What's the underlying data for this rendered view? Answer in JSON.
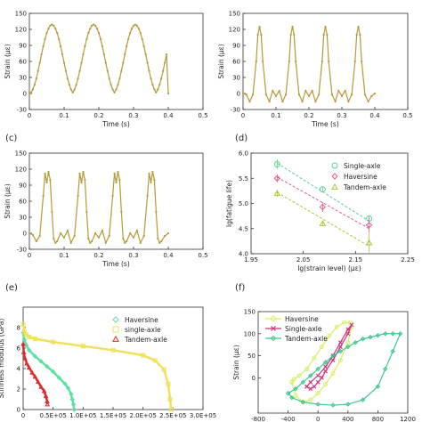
{
  "panel_labels": {
    "c": "(c)",
    "d": "(d)",
    "e": "(e)",
    "f": "(f)"
  },
  "chart_data": [
    {
      "id": "a",
      "type": "line",
      "xlabel": "Time (s)",
      "ylabel": "Strain (με)",
      "xlim": [
        0,
        0.5
      ],
      "ylim": [
        -30,
        150
      ],
      "xticks": [
        0,
        0.1,
        0.2,
        0.3,
        0.4,
        0.5
      ],
      "xtick_labels": [
        "0",
        "0.1",
        "0.2",
        "0.3",
        "0.4",
        "0.5"
      ],
      "yticks": [
        -30,
        0,
        30,
        60,
        90,
        120,
        150
      ],
      "ytick_labels": [
        "-30",
        "0",
        "30",
        "60",
        "90",
        "120",
        "150"
      ],
      "series": [
        {
          "color": "#b39a3a",
          "marker": "dot",
          "x": [
            0,
            0.005,
            0.01,
            0.015,
            0.02,
            0.025,
            0.03,
            0.035,
            0.04,
            0.045,
            0.05,
            0.055,
            0.06,
            0.065,
            0.07,
            0.075,
            0.08,
            0.085,
            0.09,
            0.095,
            0.1,
            0.105,
            0.11,
            0.115,
            0.12,
            0.125,
            0.13,
            0.135,
            0.14,
            0.145,
            0.15,
            0.155,
            0.16,
            0.165,
            0.17,
            0.175,
            0.18,
            0.185,
            0.19,
            0.195,
            0.2,
            0.205,
            0.21,
            0.215,
            0.22,
            0.225,
            0.23,
            0.235,
            0.24,
            0.245,
            0.25,
            0.255,
            0.26,
            0.265,
            0.27,
            0.275,
            0.28,
            0.285,
            0.29,
            0.295,
            0.3,
            0.305,
            0.31,
            0.315,
            0.32,
            0.325,
            0.33,
            0.335,
            0.34,
            0.345,
            0.35,
            0.355,
            0.36,
            0.365,
            0.37,
            0.375,
            0.38,
            0.385,
            0.39,
            0.395,
            0.4
          ],
          "y": [
            0,
            1.9,
            7.5,
            16.3,
            28,
            42,
            57.5,
            73.4,
            88.5,
            101.9,
            113.2,
            121.4,
            127,
            129,
            127,
            121.4,
            113.2,
            101.9,
            88.5,
            73.4,
            57.5,
            42,
            28,
            16.3,
            7.5,
            1.9,
            7.5,
            16.3,
            28,
            42,
            57.5,
            73.4,
            88.5,
            101.9,
            113.2,
            121.4,
            127,
            129,
            127,
            121.4,
            113.2,
            101.9,
            88.5,
            73.4,
            57.5,
            42,
            28,
            16.3,
            7.5,
            1.9,
            7.5,
            16.3,
            28,
            42,
            57.5,
            73.4,
            88.5,
            101.9,
            113.2,
            121.4,
            127,
            129,
            127,
            121.4,
            113.2,
            101.9,
            88.5,
            73.4,
            57.5,
            42,
            28,
            16.3,
            7.5,
            1.9,
            7.5,
            16.3,
            28,
            42,
            57.5,
            73.4,
            0
          ]
        }
      ]
    },
    {
      "id": "b",
      "type": "line",
      "xlabel": "Time (s)",
      "ylabel": "Strain (με)",
      "xlim": [
        0,
        0.5
      ],
      "ylim": [
        -30,
        150
      ],
      "xticks": [
        0,
        0.1,
        0.2,
        0.3,
        0.4,
        0.5
      ],
      "xtick_labels": [
        "0",
        "0.1",
        "0.2",
        "0.3",
        "0.4",
        "0.5"
      ],
      "yticks": [
        -30,
        0,
        30,
        60,
        90,
        120,
        150
      ],
      "ytick_labels": [
        "-30",
        "0",
        "30",
        "60",
        "90",
        "120",
        "150"
      ],
      "series": [
        {
          "color": "#b39a3a",
          "marker": "dot",
          "x": [
            0,
            0.01,
            0.02,
            0.03,
            0.04,
            0.045,
            0.05,
            0.055,
            0.06,
            0.07,
            0.08,
            0.09,
            0.1,
            0.11,
            0.12,
            0.13,
            0.14,
            0.145,
            0.15,
            0.155,
            0.16,
            0.17,
            0.18,
            0.19,
            0.2,
            0.21,
            0.22,
            0.23,
            0.24,
            0.245,
            0.25,
            0.255,
            0.26,
            0.27,
            0.28,
            0.29,
            0.3,
            0.31,
            0.32,
            0.33,
            0.34,
            0.345,
            0.35,
            0.355,
            0.36,
            0.37,
            0.38,
            0.39,
            0.4
          ],
          "y": [
            0,
            -2,
            -15,
            -2,
            60,
            110,
            125,
            110,
            60,
            -2,
            -15,
            5,
            -5,
            5,
            -15,
            -2,
            60,
            110,
            125,
            110,
            60,
            -2,
            -15,
            5,
            -5,
            5,
            -15,
            -2,
            60,
            110,
            125,
            110,
            60,
            -2,
            -15,
            5,
            -5,
            5,
            -15,
            -2,
            60,
            110,
            125,
            110,
            60,
            -2,
            -15,
            -5,
            0
          ]
        }
      ]
    },
    {
      "id": "c",
      "type": "line",
      "xlabel": "Time (s)",
      "ylabel": "Strain (με)",
      "xlim": [
        0,
        0.5
      ],
      "ylim": [
        -30,
        150
      ],
      "xticks": [
        0,
        0.1,
        0.2,
        0.3,
        0.4,
        0.5
      ],
      "xtick_labels": [
        "0",
        "0.1",
        "0.2",
        "0.3",
        "0.4",
        "0.5"
      ],
      "yticks": [
        -30,
        0,
        30,
        60,
        90,
        120,
        150
      ],
      "ytick_labels": [
        "-30",
        "0",
        "30",
        "60",
        "90",
        "120",
        "150"
      ],
      "series": [
        {
          "color": "#b39a3a",
          "marker": "dot",
          "x": [
            0,
            0.01,
            0.02,
            0.03,
            0.04,
            0.045,
            0.05,
            0.055,
            0.06,
            0.065,
            0.07,
            0.075,
            0.08,
            0.09,
            0.1,
            0.11,
            0.12,
            0.13,
            0.14,
            0.145,
            0.15,
            0.155,
            0.16,
            0.165,
            0.17,
            0.175,
            0.18,
            0.19,
            0.2,
            0.21,
            0.22,
            0.23,
            0.24,
            0.245,
            0.25,
            0.255,
            0.26,
            0.265,
            0.27,
            0.275,
            0.28,
            0.29,
            0.3,
            0.31,
            0.32,
            0.33,
            0.34,
            0.345,
            0.35,
            0.355,
            0.36,
            0.365,
            0.37,
            0.375,
            0.38,
            0.39,
            0.4
          ],
          "y": [
            0,
            -3,
            -15,
            -5,
            70,
            112,
            95,
            115,
            100,
            40,
            -10,
            -18,
            -15,
            0,
            -8,
            5,
            -18,
            -5,
            70,
            112,
            95,
            115,
            100,
            40,
            -10,
            -18,
            -15,
            0,
            -8,
            5,
            -18,
            -5,
            70,
            112,
            95,
            115,
            100,
            40,
            -10,
            -18,
            -15,
            0,
            -8,
            5,
            -18,
            -5,
            70,
            112,
            95,
            115,
            100,
            40,
            -10,
            -18,
            -15,
            -5,
            0
          ]
        }
      ]
    },
    {
      "id": "d",
      "type": "scatter",
      "xlabel": "lg(strain level) (με)",
      "ylabel": "lg(fatigue life)",
      "xlim": [
        1.95,
        2.25
      ],
      "ylim": [
        4.0,
        6.0
      ],
      "xticks": [
        1.95,
        2.05,
        2.15,
        2.25
      ],
      "xtick_labels": [
        "1.95",
        "2.05",
        "2.15",
        "2.25"
      ],
      "yticks": [
        4.0,
        4.5,
        5.0,
        5.5,
        6.0
      ],
      "ytick_labels": [
        "4.0",
        "4.5",
        "5.0",
        "5.5",
        "6.0"
      ],
      "legend_position": "top-right",
      "series": [
        {
          "name": "Single-axle",
          "marker": "circle",
          "color": "#5dd08f",
          "x": [
            2.0,
            2.087,
            2.176
          ],
          "y": [
            5.78,
            5.28,
            4.7
          ],
          "err": [
            0.1,
            0.05,
            0.05
          ],
          "fit_x": [
            2.0,
            2.176
          ],
          "fit_y": [
            5.8,
            4.65
          ]
        },
        {
          "name": "Haversine",
          "marker": "diamond",
          "color": "#e05c94",
          "x": [
            2.0,
            2.087,
            2.176
          ],
          "y": [
            5.5,
            4.93,
            4.57
          ],
          "err": [
            0.08,
            0.1,
            0.15
          ],
          "fit_x": [
            2.0,
            2.176
          ],
          "fit_y": [
            5.52,
            4.5
          ]
        },
        {
          "name": "Tandem-axle",
          "marker": "triangle",
          "color": "#a8c83c",
          "x": [
            2.0,
            2.087,
            2.176
          ],
          "y": [
            5.2,
            4.6,
            4.22
          ],
          "err": [
            0.07,
            0.05,
            0.2
          ],
          "fit_x": [
            2.0,
            2.176
          ],
          "fit_y": [
            5.22,
            4.15
          ]
        }
      ]
    },
    {
      "id": "e",
      "type": "line",
      "xlabel": "",
      "ylabel": "Stiffness modulus (GPa)",
      "xlim": [
        0,
        300000
      ],
      "ylim": [
        0,
        10
      ],
      "xticks": [
        0,
        50000,
        100000,
        150000,
        200000,
        250000,
        300000
      ],
      "xtick_labels": [
        "0",
        "0.5E+05",
        "1.0E+05",
        "1.5E+05",
        "2.0E+05",
        "2.5E+05",
        "3.0E+05"
      ],
      "yticks": [
        0,
        2,
        4,
        6,
        8
      ],
      "ytick_labels": [
        "0",
        "2",
        "4",
        "6",
        "8"
      ],
      "legend_position": "top-right",
      "series": [
        {
          "name": "Haversine",
          "marker": "diamond",
          "color": "#5ce0a4",
          "x": [
            0,
            2000,
            5000,
            10000,
            20000,
            30000,
            40000,
            50000,
            60000,
            70000,
            75000,
            80000,
            82000,
            84000,
            85000
          ],
          "y": [
            7.5,
            6.8,
            6.3,
            5.8,
            5.2,
            4.7,
            4.2,
            3.7,
            3.1,
            2.5,
            2.1,
            1.5,
            1.0,
            0.5,
            0
          ]
        },
        {
          "name": "single-axle",
          "marker": "square",
          "color": "#f0e15a",
          "x": [
            0,
            2000,
            5000,
            10000,
            20000,
            50000,
            100000,
            150000,
            200000,
            220000,
            235000,
            242000,
            245000,
            247000
          ],
          "y": [
            8.3,
            7.6,
            7.3,
            7.1,
            6.9,
            6.6,
            6.2,
            5.8,
            5.3,
            4.8,
            3.9,
            2.5,
            1.0,
            0
          ]
        },
        {
          "name": "Tandem-axle",
          "marker": "triangle",
          "color": "#e02a2a",
          "x": [
            0,
            1000,
            3000,
            6000,
            10000,
            15000,
            20000,
            25000,
            30000,
            35000,
            38000,
            40000,
            40500
          ],
          "y": [
            6.4,
            5.6,
            5.0,
            4.5,
            4.1,
            3.6,
            3.2,
            2.7,
            2.2,
            1.8,
            1.3,
            0.8,
            0.5
          ]
        }
      ]
    },
    {
      "id": "f",
      "type": "scatter",
      "xlabel": "",
      "ylabel": "Strain (με)",
      "xlim": [
        -800,
        1200
      ],
      "ylim": [
        -80,
        150
      ],
      "xticks": [
        -800,
        -400,
        0,
        400,
        800,
        1200
      ],
      "xtick_labels": [
        "-800",
        "-400",
        "0",
        "400",
        "800",
        "1200"
      ],
      "yticks": [
        0,
        50,
        100,
        150
      ],
      "ytick_labels": [
        "0",
        "50",
        "100",
        "150"
      ],
      "legend_position": "top-left",
      "series": [
        {
          "name": "Haversine",
          "marker": "circle",
          "color": "#d8ee66",
          "x": [
            -350,
            -300,
            -200,
            -100,
            0,
            100,
            200,
            300,
            400,
            450,
            430,
            350,
            250,
            150,
            50,
            -50,
            -150,
            -250,
            -320,
            -350
          ],
          "y": [
            -10,
            -40,
            -55,
            -50,
            -35,
            -15,
            10,
            40,
            80,
            115,
            125,
            125,
            115,
            95,
            70,
            45,
            20,
            5,
            -3,
            -10
          ]
        },
        {
          "name": "Single-axle",
          "marker": "cross",
          "color": "#d0327a",
          "x": [
            -150,
            -100,
            -50,
            0,
            50,
            100,
            200,
            300,
            400,
            450,
            400,
            300,
            200,
            100,
            0,
            -100,
            -150
          ],
          "y": [
            -20,
            -25,
            -20,
            -10,
            0,
            15,
            40,
            70,
            100,
            120,
            110,
            80,
            50,
            25,
            5,
            -10,
            -20
          ]
        },
        {
          "name": "Tandem-axle",
          "marker": "diamond",
          "color": "#3cc88c",
          "x": [
            -400,
            -300,
            -200,
            -100,
            0,
            100,
            200,
            300,
            400,
            500,
            600,
            700,
            800,
            900,
            1000,
            1100,
            1000,
            900,
            800,
            600,
            400,
            200,
            0,
            -200,
            -350,
            -400
          ],
          "y": [
            -35,
            -25,
            -10,
            5,
            20,
            35,
            50,
            60,
            70,
            80,
            88,
            92,
            96,
            100,
            100,
            100,
            60,
            20,
            -20,
            -50,
            -60,
            -62,
            -60,
            -55,
            -45,
            -35
          ]
        }
      ]
    }
  ]
}
